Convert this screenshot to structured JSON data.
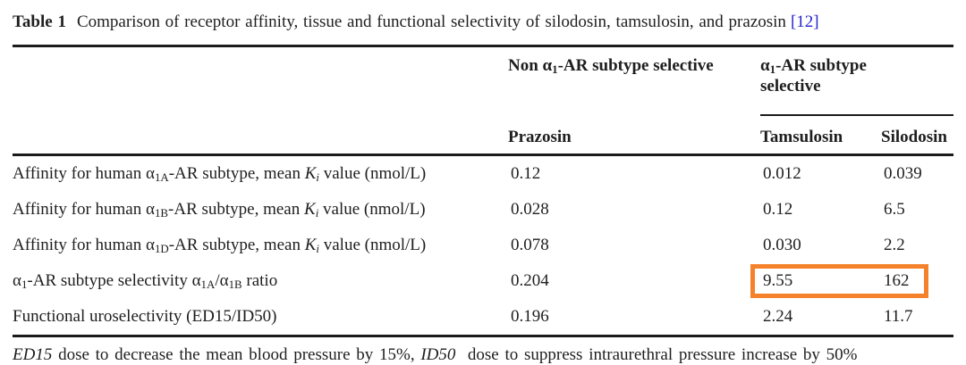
{
  "page": {
    "highlight_color": "#F5822B",
    "citation_color": "#2323CE"
  },
  "title": {
    "label": "Table 1",
    "text": "Comparison of receptor affinity, tissue and functional selectivity of silodosin, tamsulosin, and prazosin",
    "citation": "[12]"
  },
  "table": {
    "group_headers": {
      "non_selective": {
        "parts": [
          {
            "t": "Non α"
          },
          {
            "t": "1",
            "s": "sub"
          },
          {
            "t": "-AR subtype selective"
          }
        ]
      },
      "selective": {
        "parts": [
          {
            "t": "α"
          },
          {
            "t": "1",
            "s": "sub"
          },
          {
            "t": "-AR subtype selective"
          }
        ]
      }
    },
    "columns": [
      "Prazosin",
      "Tamsulosin",
      "Silodosin"
    ],
    "rows": [
      {
        "label_parts": [
          {
            "t": "Affinity for human α"
          },
          {
            "t": "1A",
            "s": "sub"
          },
          {
            "t": "-AR subtype, mean "
          },
          {
            "t": "K",
            "s": "i"
          },
          {
            "t": "i",
            "s": "isub"
          },
          {
            "t": " value (nmol/L)"
          }
        ],
        "values": [
          "0.12",
          "0.012",
          "0.039"
        ],
        "highlighted": false
      },
      {
        "label_parts": [
          {
            "t": "Affinity for human α"
          },
          {
            "t": "1B",
            "s": "sub"
          },
          {
            "t": "-AR subtype, mean "
          },
          {
            "t": "K",
            "s": "i"
          },
          {
            "t": "i",
            "s": "isub"
          },
          {
            "t": " value (nmol/L)"
          }
        ],
        "values": [
          "0.028",
          "0.12",
          "6.5"
        ],
        "highlighted": false
      },
      {
        "label_parts": [
          {
            "t": "Affinity for human α"
          },
          {
            "t": "1D",
            "s": "sub"
          },
          {
            "t": "-AR subtype, mean "
          },
          {
            "t": "K",
            "s": "i"
          },
          {
            "t": "i",
            "s": "isub"
          },
          {
            "t": " value (nmol/L)"
          }
        ],
        "values": [
          "0.078",
          "0.030",
          "2.2"
        ],
        "highlighted": false
      },
      {
        "label_parts": [
          {
            "t": "α"
          },
          {
            "t": "1",
            "s": "sub"
          },
          {
            "t": "-AR subtype selectivity α"
          },
          {
            "t": "1A",
            "s": "sub"
          },
          {
            "t": "/α"
          },
          {
            "t": "1B",
            "s": "sub"
          },
          {
            "t": " ratio"
          }
        ],
        "values": [
          "0.204",
          "9.55",
          "162"
        ],
        "highlighted": true
      },
      {
        "label_parts": [
          {
            "t": "Functional uroselectivity (ED15/ID50)"
          }
        ],
        "values": [
          "0.196",
          "2.24",
          "11.7"
        ],
        "highlighted": false
      }
    ]
  },
  "footnote": {
    "parts": [
      {
        "t": "ED15",
        "s": "i"
      },
      {
        "t": " dose to decrease the mean blood pressure by 15%, "
      },
      {
        "t": "ID50",
        "s": "i"
      },
      {
        "t": "  dose to suppress intraurethral pressure increase by 50%"
      }
    ]
  }
}
